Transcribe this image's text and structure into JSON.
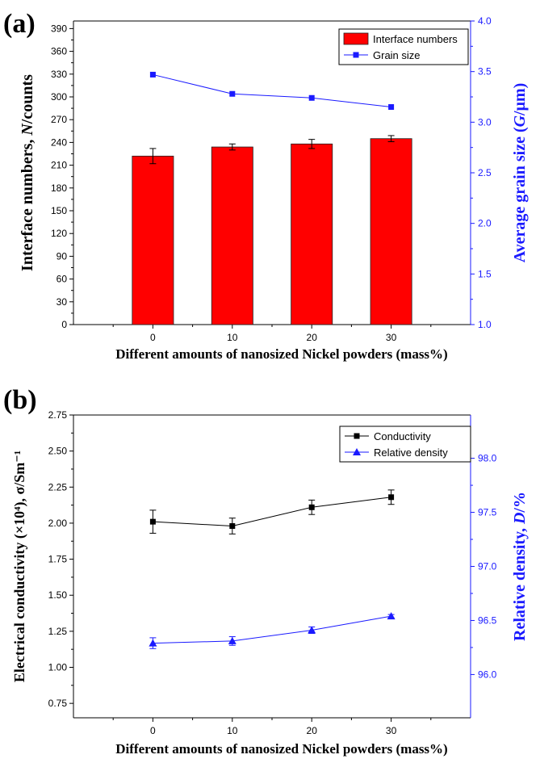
{
  "chart_data": [
    {
      "panel": "(a)",
      "type": "bar",
      "categories": [
        "0",
        "10",
        "20",
        "30"
      ],
      "xlabel": "Different amounts of nanosized Nickel powders (mass%)",
      "ylabel": "Interface numbers, N/counts",
      "ylabel_right": "Average grain size (G/μm)",
      "ylim": [
        0,
        400
      ],
      "yticks": [
        "0",
        "30",
        "60",
        "90",
        "120",
        "150",
        "180",
        "210",
        "240",
        "270",
        "300",
        "330",
        "360",
        "390"
      ],
      "ylim_right": [
        1.0,
        4.0
      ],
      "yticks_right": [
        "1.0",
        "1.5",
        "2.0",
        "2.5",
        "3.0",
        "3.5",
        "4.0"
      ],
      "legend_position": "top-right",
      "series": [
        {
          "name": "Interface numbers",
          "kind": "bar",
          "axis": "left",
          "color": "#ff0000",
          "values": [
            222,
            234,
            238,
            245
          ],
          "errors": [
            10,
            4,
            6,
            4
          ]
        },
        {
          "name": "Grain size",
          "kind": "line",
          "marker": "square",
          "axis": "right",
          "color": "#1a1aff",
          "values": [
            3.47,
            3.28,
            3.24,
            3.15
          ]
        }
      ]
    },
    {
      "panel": "(b)",
      "type": "line",
      "categories": [
        "0",
        "10",
        "20",
        "30"
      ],
      "xlabel": "Different amounts of nanosized Nickel powders (mass%)",
      "ylabel": "Electrical conductivity (×10⁴), σ/Sm⁻¹",
      "ylabel_right": "Relative density, D/%",
      "ylim": [
        0.65,
        2.75
      ],
      "yticks": [
        "0.75",
        "1.00",
        "1.25",
        "1.50",
        "1.75",
        "2.00",
        "2.25",
        "2.50",
        "2.75"
      ],
      "ylim_right": [
        95.6,
        98.4
      ],
      "yticks_right": [
        "96.0",
        "96.5",
        "97.0",
        "97.5",
        "98.0"
      ],
      "legend_position": "top-right",
      "series": [
        {
          "name": "Conductivity",
          "marker": "square",
          "axis": "left",
          "color": "#000000",
          "values": [
            2.01,
            1.98,
            2.11,
            2.18
          ],
          "errors": [
            0.08,
            0.055,
            0.05,
            0.05
          ]
        },
        {
          "name": "Relative density",
          "marker": "triangle",
          "axis": "right",
          "color": "#1a1aff",
          "values": [
            96.29,
            96.31,
            96.41,
            96.54
          ],
          "errors": [
            0.05,
            0.04,
            0.03,
            0.015
          ]
        }
      ]
    }
  ]
}
